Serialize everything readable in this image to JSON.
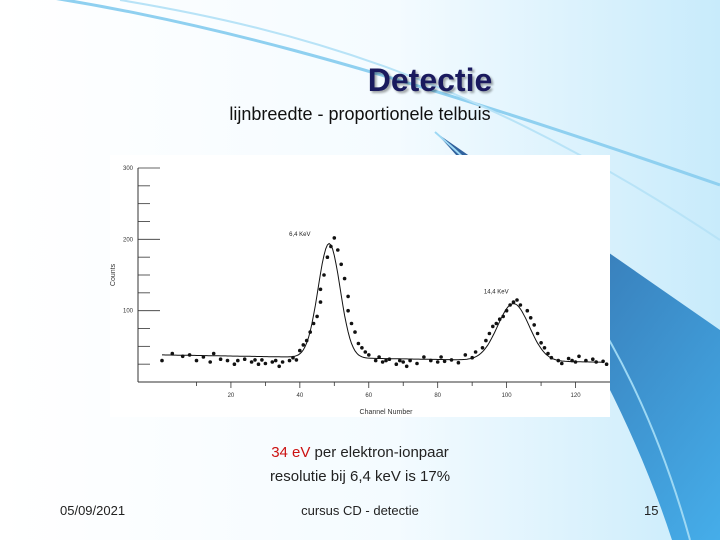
{
  "slide": {
    "title": "Detectie",
    "subtitle": "lijnbreedte - proportionele telbuis",
    "note_highlight": "34 eV",
    "note_rest": " per elektron-ionpaar",
    "note_line2": "resolutie bij 6,4 keV is 17%",
    "footer_date": "05/09/2021",
    "footer_center": "cursus CD - detectie",
    "footer_page": "15",
    "colors": {
      "title": "#1a1a5e",
      "highlight": "#cc1111",
      "accent": "#3aa0e0"
    }
  },
  "chart_data": {
    "type": "scatter",
    "xlabel": "Channel Number",
    "ylabel": "Counts",
    "xticks": [
      20,
      40,
      60,
      80,
      100,
      120
    ],
    "yticks": [
      100,
      200,
      300
    ],
    "xlim": [
      0,
      130
    ],
    "ylim": [
      0,
      300
    ],
    "annotations": [
      {
        "text": "6,4 KeV",
        "x": 40,
        "y": 205
      },
      {
        "text": "14,4 KeV",
        "x": 97,
        "y": 124
      }
    ],
    "series": [
      {
        "points": [
          [
            0,
            30
          ],
          [
            3,
            40
          ],
          [
            6,
            36
          ],
          [
            8,
            38
          ],
          [
            10,
            30
          ],
          [
            12,
            35
          ],
          [
            14,
            28
          ],
          [
            15,
            40
          ],
          [
            17,
            32
          ],
          [
            19,
            30
          ],
          [
            21,
            25
          ],
          [
            22,
            30
          ],
          [
            24,
            32
          ],
          [
            26,
            28
          ],
          [
            27,
            31
          ],
          [
            28,
            25
          ],
          [
            29,
            31
          ],
          [
            30,
            26
          ],
          [
            32,
            28
          ],
          [
            33,
            30
          ],
          [
            34,
            22
          ],
          [
            35,
            28
          ],
          [
            37,
            30
          ],
          [
            38,
            34
          ],
          [
            39,
            31
          ],
          [
            40,
            44
          ],
          [
            41,
            52
          ],
          [
            42,
            58
          ],
          [
            43,
            70
          ],
          [
            44,
            82
          ],
          [
            45,
            92
          ],
          [
            46,
            112
          ],
          [
            46,
            130
          ],
          [
            47,
            150
          ],
          [
            48,
            175
          ],
          [
            49,
            190
          ],
          [
            50,
            202
          ],
          [
            51,
            185
          ],
          [
            52,
            165
          ],
          [
            53,
            145
          ],
          [
            54,
            120
          ],
          [
            54,
            100
          ],
          [
            55,
            82
          ],
          [
            56,
            70
          ],
          [
            57,
            54
          ],
          [
            58,
            48
          ],
          [
            59,
            42
          ],
          [
            60,
            38
          ],
          [
            62,
            30
          ],
          [
            63,
            35
          ],
          [
            64,
            28
          ],
          [
            65,
            30
          ],
          [
            66,
            32
          ],
          [
            68,
            25
          ],
          [
            69,
            30
          ],
          [
            70,
            28
          ],
          [
            71,
            22
          ],
          [
            72,
            30
          ],
          [
            74,
            26
          ],
          [
            76,
            35
          ],
          [
            78,
            30
          ],
          [
            80,
            28
          ],
          [
            81,
            35
          ],
          [
            82,
            29
          ],
          [
            84,
            31
          ],
          [
            86,
            27
          ],
          [
            88,
            38
          ],
          [
            90,
            34
          ],
          [
            91,
            42
          ],
          [
            93,
            48
          ],
          [
            94,
            58
          ],
          [
            95,
            68
          ],
          [
            96,
            78
          ],
          [
            97,
            82
          ],
          [
            98,
            88
          ],
          [
            99,
            92
          ],
          [
            100,
            100
          ],
          [
            101,
            108
          ],
          [
            102,
            112
          ],
          [
            103,
            115
          ],
          [
            104,
            108
          ],
          [
            106,
            100
          ],
          [
            107,
            90
          ],
          [
            108,
            80
          ],
          [
            109,
            68
          ],
          [
            110,
            55
          ],
          [
            111,
            48
          ],
          [
            112,
            40
          ],
          [
            113,
            34
          ],
          [
            115,
            30
          ],
          [
            116,
            26
          ],
          [
            118,
            33
          ],
          [
            119,
            30
          ],
          [
            120,
            28
          ],
          [
            121,
            36
          ],
          [
            123,
            30
          ],
          [
            125,
            32
          ],
          [
            126,
            28
          ],
          [
            128,
            29
          ],
          [
            129,
            25
          ]
        ]
      }
    ]
  }
}
